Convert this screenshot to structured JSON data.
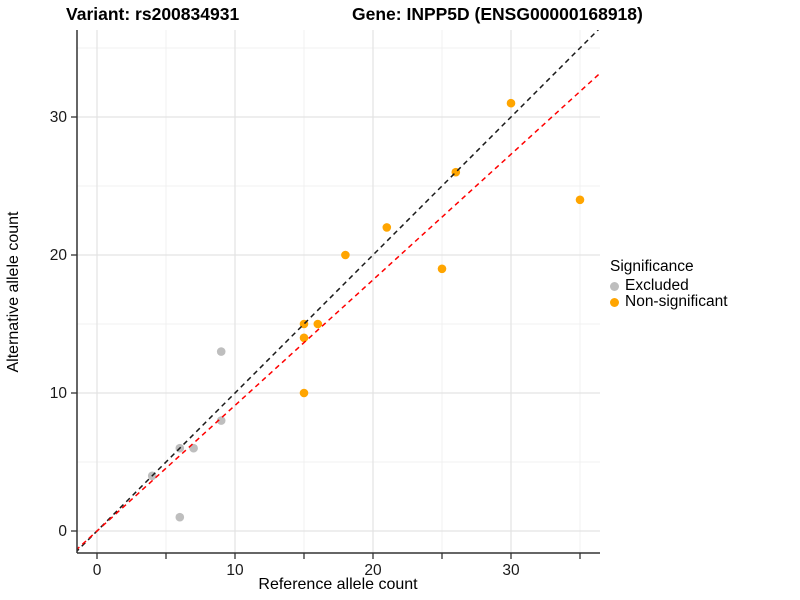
{
  "header": {
    "variant_title": "Variant: rs200834931",
    "gene_title": "Gene: INPP5D (ENSG00000168918)"
  },
  "chart_data": {
    "type": "scatter",
    "xlabel": "Reference allele count",
    "ylabel": "Alternative allele count",
    "xlim": [
      -1.5,
      36.4
    ],
    "ylim": [
      -1.6,
      37.9
    ],
    "x_tick_labels": [
      0,
      10,
      20,
      30
    ],
    "x_tick_marks": [
      0,
      5,
      10,
      15,
      20,
      25,
      30,
      35
    ],
    "y_tick_labels": [
      0,
      10,
      20,
      30
    ],
    "y_tick_marks": [
      0,
      10,
      20,
      30
    ],
    "grid_major": [
      0,
      10,
      20,
      30
    ],
    "grid_minor": [
      5,
      15,
      25,
      35
    ],
    "grid_on": true,
    "series": [
      {
        "name": "Excluded",
        "color": "#BEBEBE",
        "points": [
          [
            4,
            4
          ],
          [
            6,
            1
          ],
          [
            6,
            6
          ],
          [
            7,
            6
          ],
          [
            9,
            8
          ],
          [
            9,
            13
          ]
        ]
      },
      {
        "name": "Non-significant",
        "color": "#FFA500",
        "points": [
          [
            15,
            10
          ],
          [
            15,
            14
          ],
          [
            15,
            15
          ],
          [
            16,
            15
          ],
          [
            18,
            20
          ],
          [
            21,
            22
          ],
          [
            25,
            19
          ],
          [
            26,
            26
          ],
          [
            30,
            31
          ],
          [
            35,
            24
          ]
        ]
      }
    ],
    "lines": [
      {
        "name": "identity-line",
        "slope": 1,
        "intercept": 0,
        "color": "#1A1A1A",
        "dash": "5,4"
      },
      {
        "name": "fit-line",
        "slope": 0.91,
        "intercept": 0,
        "color": "#FF0000",
        "dash": "5,4"
      }
    ],
    "legend": {
      "title": "Significance",
      "position": "right",
      "entries": [
        {
          "label": "Excluded",
          "color": "#BEBEBE"
        },
        {
          "label": "Non-significant",
          "color": "#FFA500"
        }
      ]
    },
    "colors": {
      "axis_line": "#333333",
      "grid_major": "#E3E3E3",
      "grid_minor": "#F0F0F0",
      "tick_text": "#1A1A1A"
    }
  }
}
